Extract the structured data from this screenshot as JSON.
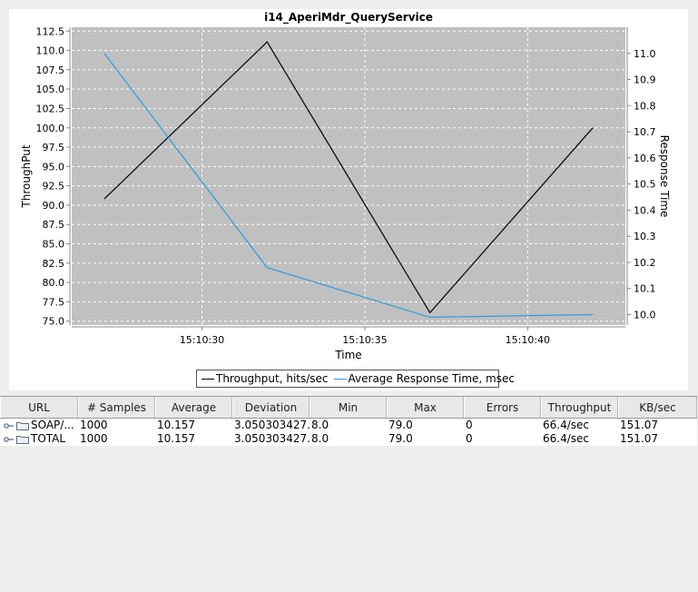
{
  "chart_data": {
    "type": "line",
    "title": "i14_AperiMdr_QueryService",
    "xlabel": "Time",
    "ylabel_left": "ThroughPut",
    "ylabel_right": "Response Time",
    "x": [
      "15:10:27",
      "15:10:32",
      "15:10:37",
      "15:10:42"
    ],
    "x_ticks": [
      "15:10:30",
      "15:10:35",
      "15:10:40"
    ],
    "y_left_ticks": [
      "75.0",
      "77.5",
      "80.0",
      "82.5",
      "85.0",
      "87.5",
      "90.0",
      "92.5",
      "95.0",
      "97.5",
      "100.0",
      "102.5",
      "105.0",
      "107.5",
      "110.0",
      "112.5"
    ],
    "y_right_ticks": [
      "10.0",
      "10.1",
      "10.2",
      "10.3",
      "10.4",
      "10.5",
      "10.6",
      "10.7",
      "10.8",
      "10.9",
      "11.0"
    ],
    "ylim_left": [
      74.5,
      113.0
    ],
    "ylim_right": [
      9.96,
      11.1
    ],
    "grid": true,
    "legend_position": "bottom",
    "background": "#c0c0c0",
    "series": [
      {
        "name": "Throughput, hits/sec",
        "axis": "left",
        "color": "#000000",
        "values": [
          90.8,
          111.1,
          76.1,
          100.0
        ]
      },
      {
        "name": "Average Response Time, msec",
        "axis": "right",
        "color": "#2a9be0",
        "values": [
          11.0,
          10.18,
          9.99,
          10.0
        ]
      }
    ]
  },
  "table": {
    "columns": [
      "URL",
      "# Samples",
      "Average",
      "Deviation",
      "Min",
      "Max",
      "Errors",
      "Throughput",
      "KB/sec"
    ],
    "rows": [
      {
        "url": "SOAP/...",
        "samples": "1000",
        "average": "10.157",
        "deviation": "3.050303427...",
        "min": "8.0",
        "max": "79.0",
        "errors": "0",
        "throughput": "66.4/sec",
        "kbsec": "151.07"
      },
      {
        "url": "TOTAL",
        "samples": "1000",
        "average": "10.157",
        "deviation": "3.050303427...",
        "min": "8.0",
        "max": "79.0",
        "errors": "0",
        "throughput": "66.4/sec",
        "kbsec": "151.07"
      }
    ]
  }
}
